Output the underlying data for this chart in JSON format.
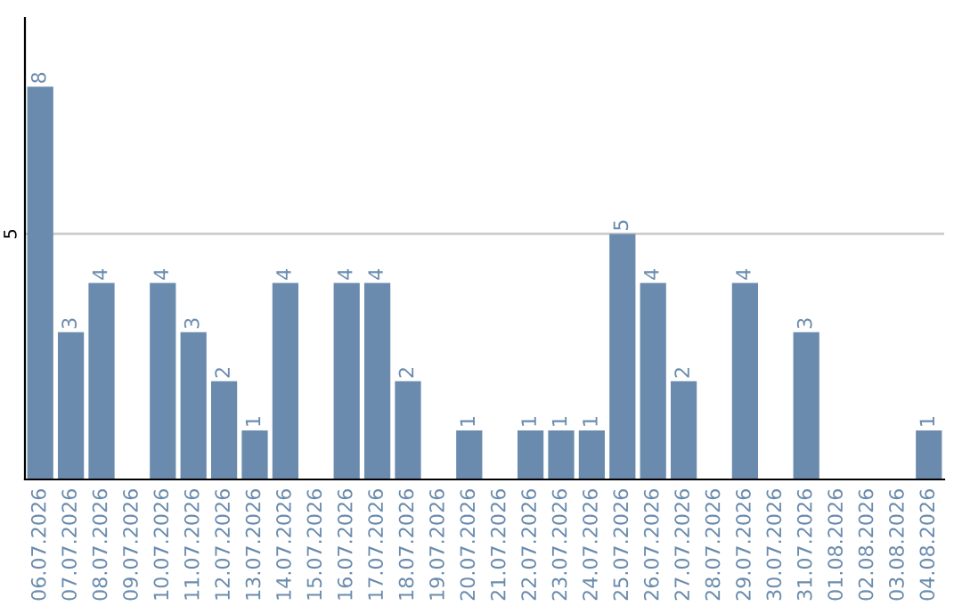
{
  "chart_data": {
    "type": "bar",
    "categories": [
      "06.07.2026",
      "07.07.2026",
      "08.07.2026",
      "09.07.2026",
      "10.07.2026",
      "11.07.2026",
      "12.07.2026",
      "13.07.2026",
      "14.07.2026",
      "15.07.2026",
      "16.07.2026",
      "17.07.2026",
      "18.07.2026",
      "19.07.2026",
      "20.07.2026",
      "21.07.2026",
      "22.07.2026",
      "23.07.2026",
      "24.07.2026",
      "25.07.2026",
      "26.07.2026",
      "27.07.2026",
      "28.07.2026",
      "29.07.2026",
      "30.07.2026",
      "31.07.2026",
      "01.08.2026",
      "02.08.2026",
      "03.08.2026",
      "04.08.2026"
    ],
    "values": [
      8,
      3,
      4,
      0,
      4,
      3,
      2,
      1,
      4,
      0,
      4,
      4,
      2,
      0,
      1,
      0,
      1,
      1,
      1,
      5,
      4,
      2,
      0,
      4,
      0,
      3,
      0,
      0,
      0,
      1
    ],
    "value_labels": [
      "8",
      "3",
      "4",
      null,
      "4",
      "3",
      "2",
      "1",
      "4",
      null,
      "4",
      "4",
      "2",
      null,
      "1",
      null,
      "1",
      "1",
      "1",
      "5",
      "4",
      "2",
      null,
      "4",
      null,
      "3",
      null,
      null,
      null,
      "1"
    ],
    "color": "#6a8bad",
    "ylim": [
      0,
      9.4
    ],
    "yticks": [
      5
    ],
    "grid": "y"
  }
}
